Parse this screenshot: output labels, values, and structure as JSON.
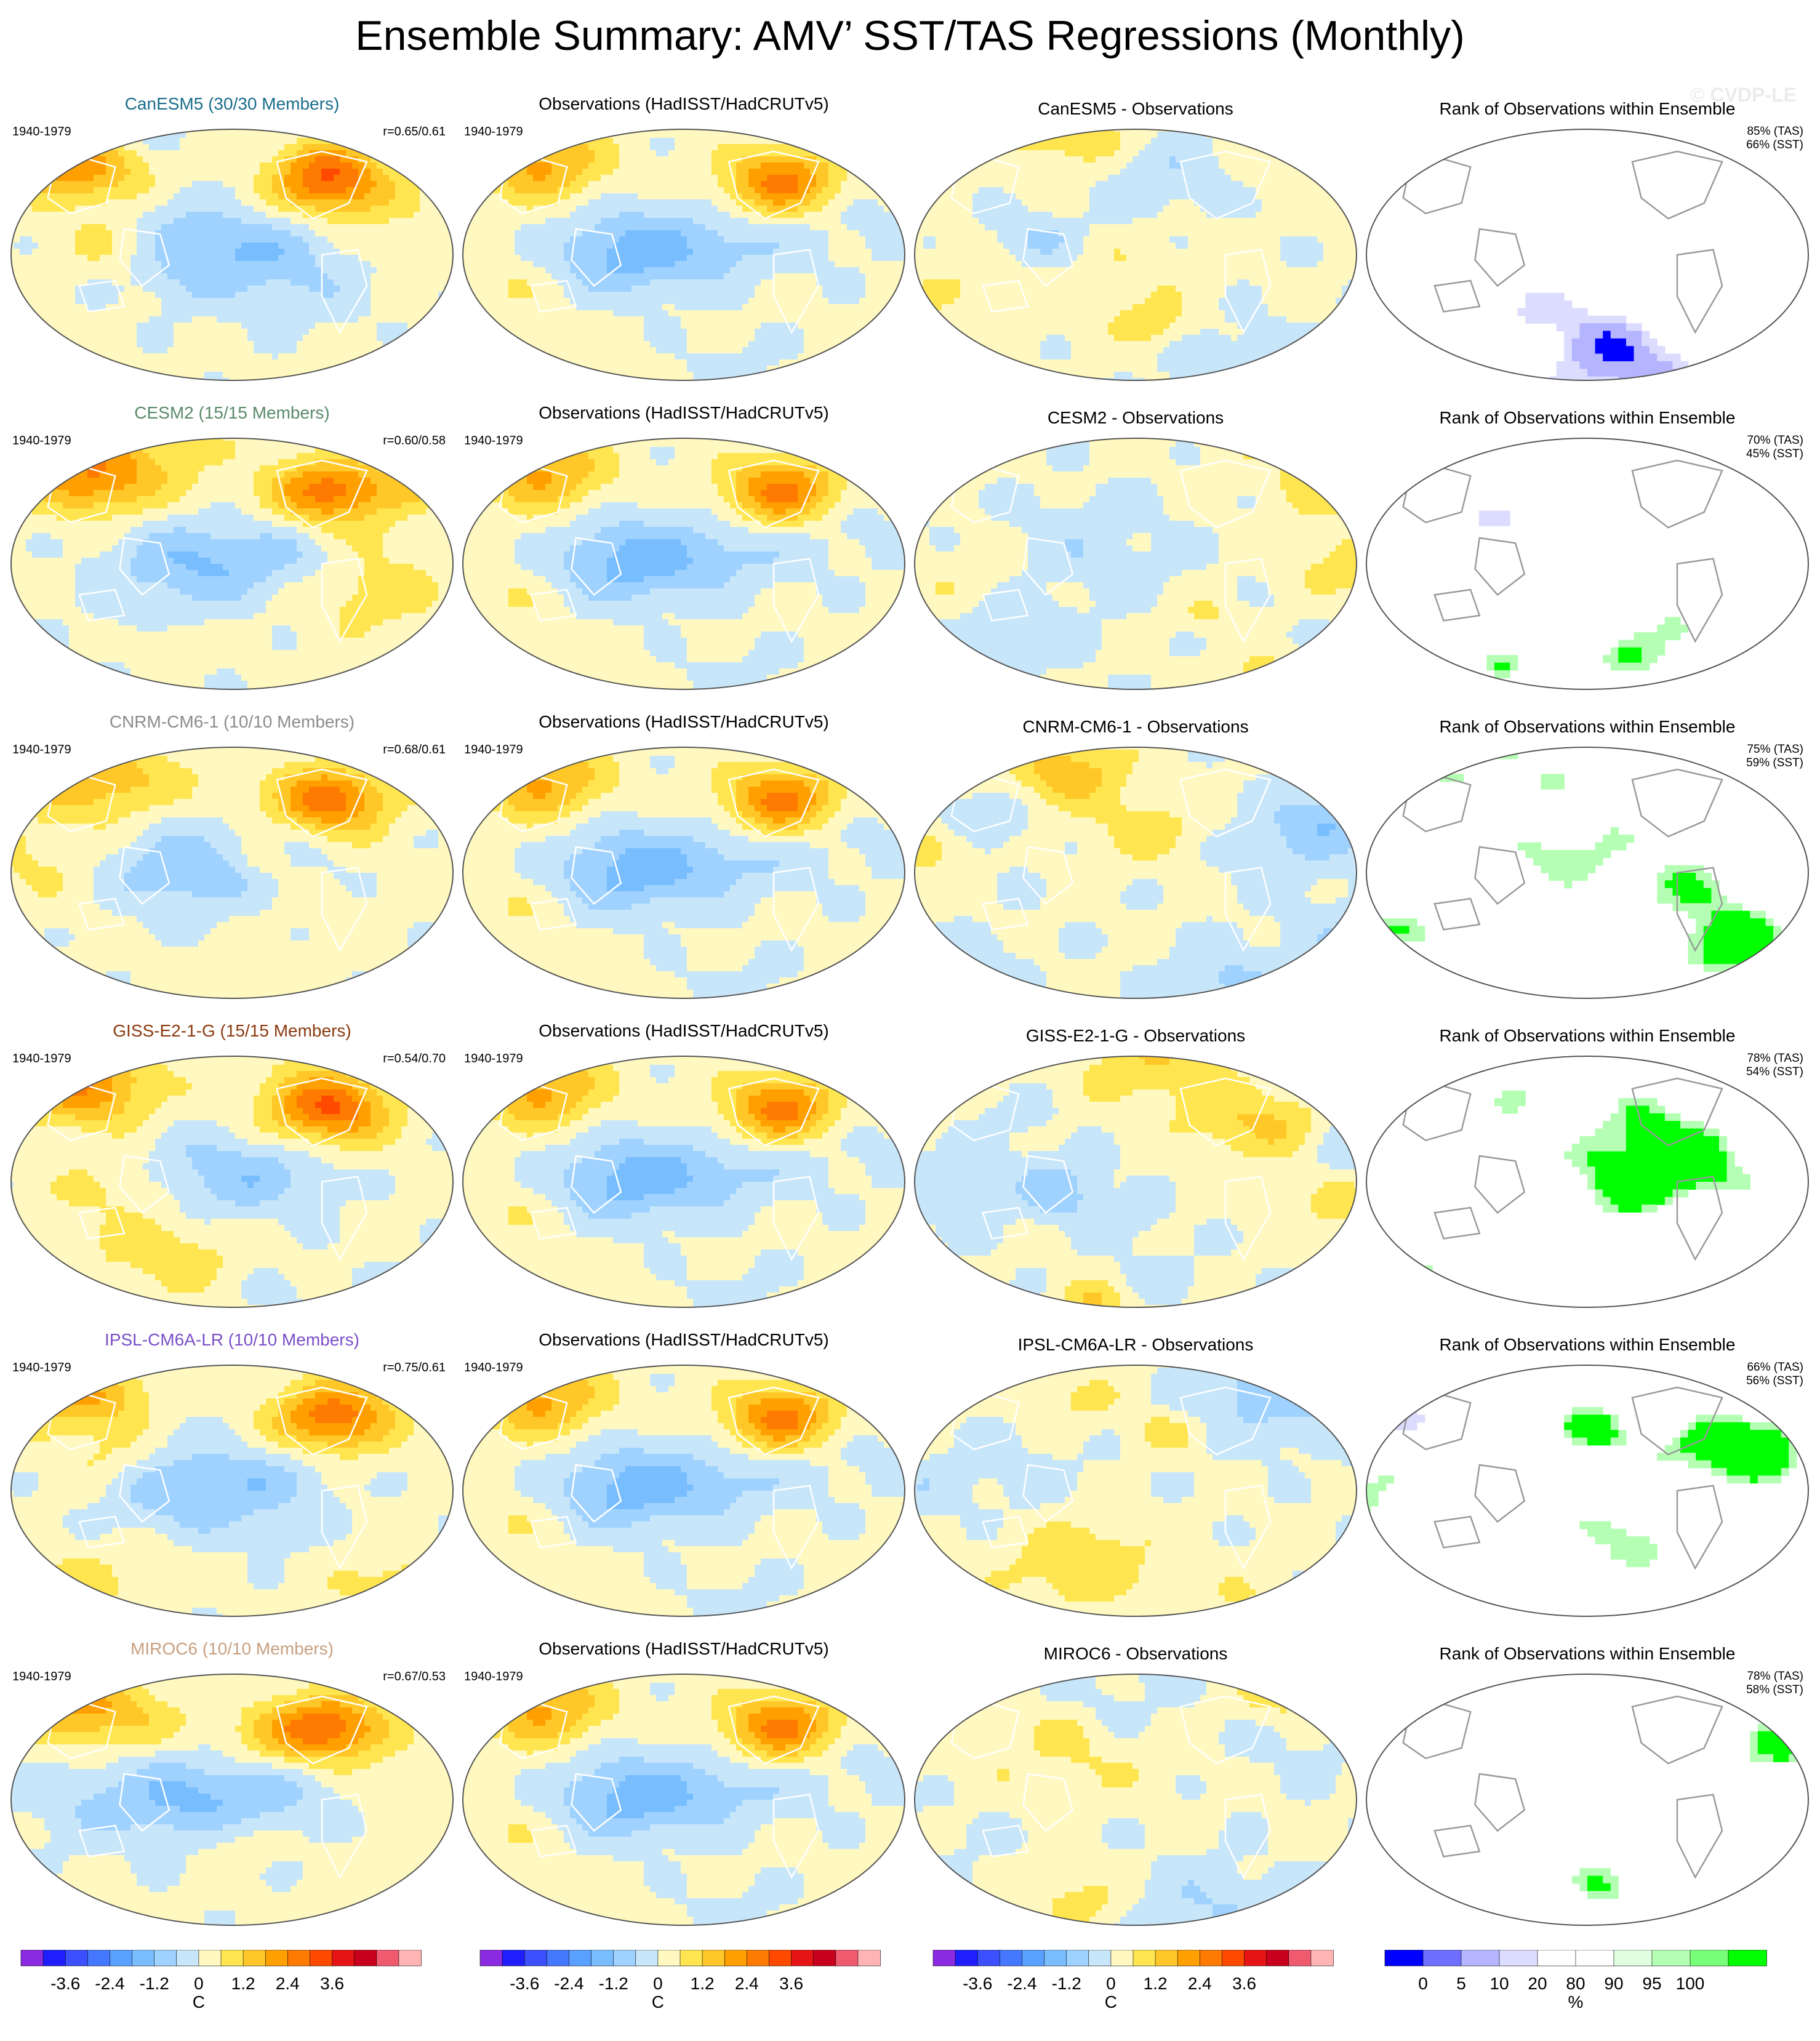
{
  "title": "Ensemble Summary: AMV’ SST/TAS Regressions (Monthly)",
  "watermark": "© CVDP-LE",
  "colors": {
    "regression_scale": [
      "#8a2be2",
      "#1e1eff",
      "#3c50ff",
      "#4678ff",
      "#5aa0ff",
      "#78beff",
      "#a0d2ff",
      "#c8e6fa",
      "#fff8c0",
      "#ffe650",
      "#ffc828",
      "#ffa000",
      "#ff7a00",
      "#ff4a00",
      "#e61414",
      "#c8001e",
      "#f05a6e",
      "#ffb4b4"
    ],
    "rank_scale": [
      "#0000ff",
      "#6e6eff",
      "#b4b4ff",
      "#dcdcff",
      "#ffffff",
      "#ffffff",
      "#e0ffe0",
      "#b4ffb4",
      "#78ff78",
      "#00ff00"
    ],
    "model_title_colors": {
      "CanESM5": "#1a6e8c",
      "CESM2": "#5a8a6a",
      "CNRM-CM6-1": "#8c8c8c",
      "GISS-E2-1-G": "#8b3a0f",
      "IPSL-CM6A-LR": "#7b50c8",
      "MIROC6": "#c8a080"
    }
  },
  "columns": {
    "obs_title": "Observations (HadISST/HadCRUTv5)",
    "rank_title": "Rank of Observations within Ensemble",
    "period": "1940-1979",
    "difference_suffix": " - Observations"
  },
  "rows": [
    {
      "model": "CanESM5",
      "model_title": "CanESM5 (30/30 Members)",
      "correlation": "r=0.65/0.61",
      "difference_title": "CanESM5 - Observations",
      "rank_tas": "85% (TAS)",
      "rank_sst": "66% (SST)"
    },
    {
      "model": "CESM2",
      "model_title": "CESM2 (15/15 Members)",
      "correlation": "r=0.60/0.58",
      "difference_title": "CESM2 - Observations",
      "rank_tas": "70% (TAS)",
      "rank_sst": "45% (SST)"
    },
    {
      "model": "CNRM-CM6-1",
      "model_title": "CNRM-CM6-1 (10/10 Members)",
      "correlation": "r=0.68/0.61",
      "difference_title": "CNRM-CM6-1 - Observations",
      "rank_tas": "75% (TAS)",
      "rank_sst": "59% (SST)"
    },
    {
      "model": "GISS-E2-1-G",
      "model_title": "GISS-E2-1-G (15/15 Members)",
      "correlation": "r=0.54/0.70",
      "difference_title": "GISS-E2-1-G - Observations",
      "rank_tas": "78% (TAS)",
      "rank_sst": "54% (SST)"
    },
    {
      "model": "IPSL-CM6A-LR",
      "model_title": "IPSL-CM6A-LR (10/10 Members)",
      "correlation": "r=0.75/0.61",
      "difference_title": "IPSL-CM6A-LR - Observations",
      "rank_tas": "66% (TAS)",
      "rank_sst": "56% (SST)"
    },
    {
      "model": "MIROC6",
      "model_title": "MIROC6 (10/10 Members)",
      "correlation": "r=0.67/0.53",
      "difference_title": "MIROC6 - Observations",
      "rank_tas": "78% (TAS)",
      "rank_sst": "58% (SST)"
    }
  ],
  "colorbars": {
    "regression": {
      "tick_labels": [
        "-3.6",
        "-2.4",
        "-1.2",
        "0",
        "1.2",
        "2.4",
        "3.6"
      ],
      "unit": "C"
    },
    "rank": {
      "tick_labels": [
        "0",
        "5",
        "10",
        "20",
        "80",
        "90",
        "95",
        "100"
      ],
      "unit": "%"
    }
  },
  "chart_data": {
    "type": "heatmap",
    "title": "Ensemble Summary: AMV’ SST/TAS Regressions (Monthly)",
    "period": "1940-1979",
    "panel_columns": [
      "model ensemble mean",
      "Observations (HadISST/HadCRUTv5)",
      "model - Observations",
      "Rank of Observations within Ensemble"
    ],
    "regression_colorbar": {
      "ticks": [
        -3.6,
        -2.4,
        -1.2,
        0,
        1.2,
        2.4,
        3.6
      ],
      "unit": "C"
    },
    "rank_colorbar": {
      "ticks": [
        0,
        5,
        10,
        20,
        80,
        90,
        95,
        100
      ],
      "unit": "%"
    },
    "models": [
      {
        "name": "CanESM5",
        "members": "30/30",
        "r_tas": 0.65,
        "r_sst": 0.61,
        "rank_tas_pct": 85,
        "rank_sst_pct": 66
      },
      {
        "name": "CESM2",
        "members": "15/15",
        "r_tas": 0.6,
        "r_sst": 0.58,
        "rank_tas_pct": 70,
        "rank_sst_pct": 45
      },
      {
        "name": "CNRM-CM6-1",
        "members": "10/10",
        "r_tas": 0.68,
        "r_sst": 0.61,
        "rank_tas_pct": 75,
        "rank_sst_pct": 59
      },
      {
        "name": "GISS-E2-1-G",
        "members": "15/15",
        "r_tas": 0.54,
        "r_sst": 0.7,
        "rank_tas_pct": 78,
        "rank_sst_pct": 54
      },
      {
        "name": "IPSL-CM6A-LR",
        "members": "10/10",
        "r_tas": 0.75,
        "r_sst": 0.61,
        "rank_tas_pct": 66,
        "rank_sst_pct": 56
      },
      {
        "name": "MIROC6",
        "members": "10/10",
        "r_tas": 0.67,
        "r_sst": 0.53,
        "rank_tas_pct": 78,
        "rank_sst_pct": 58
      }
    ]
  }
}
